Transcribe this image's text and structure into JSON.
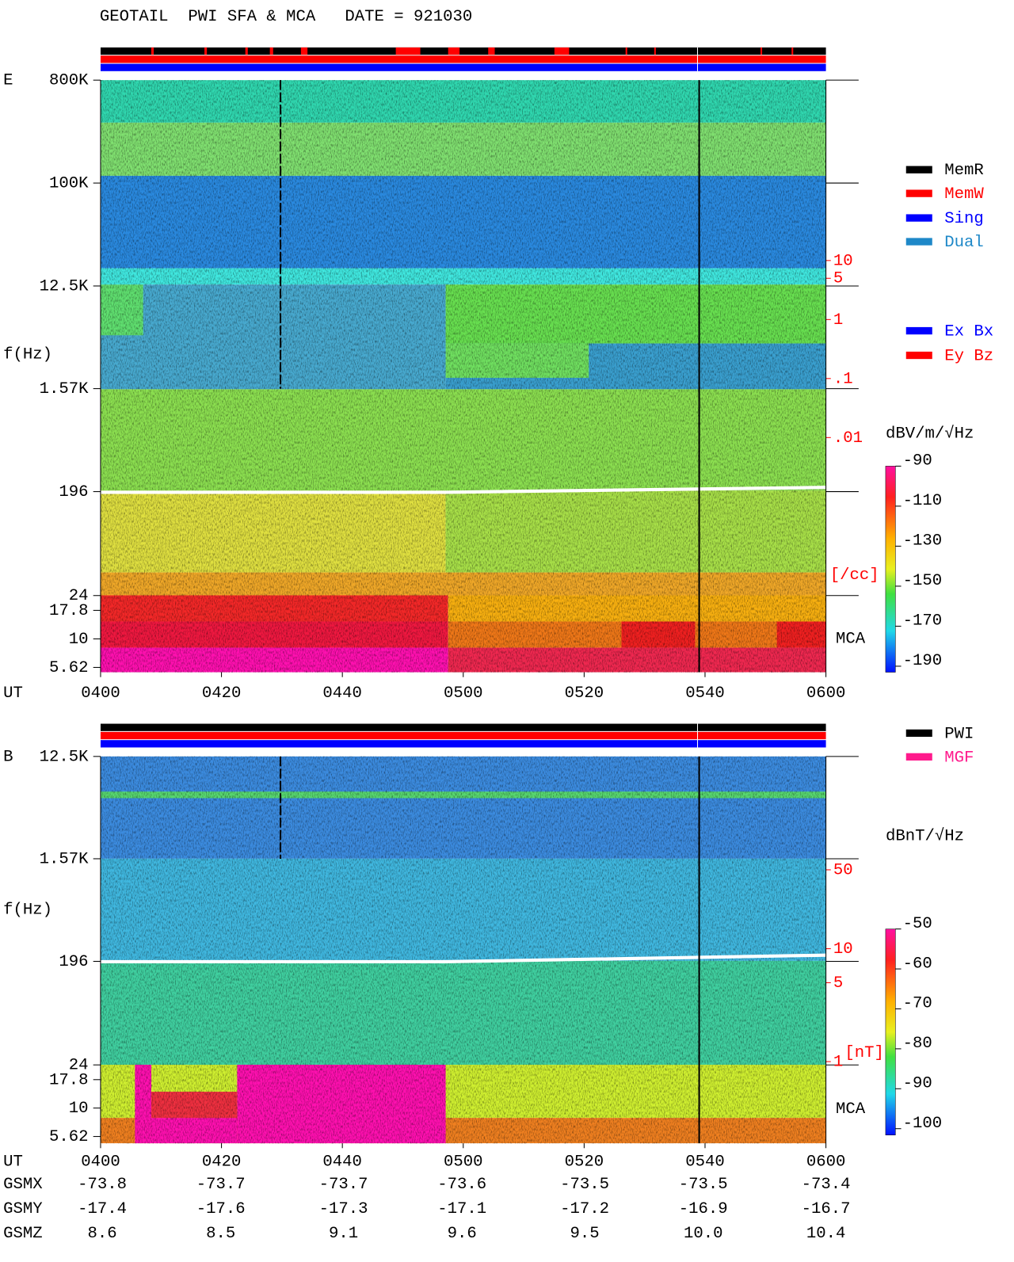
{
  "title": "GEOTAIL  PWI SFA & MCA   DATE = 921030",
  "chart_data": [
    {
      "type": "spectrogram",
      "panel_label": "E",
      "ylabel": "f(Hz)",
      "xlabel": "UT",
      "xlim": [
        240,
        360
      ],
      "xticks": [
        {
          "value": 240,
          "label": "0400"
        },
        {
          "value": 260,
          "label": "0420"
        },
        {
          "value": 280,
          "label": "0440"
        },
        {
          "value": 300,
          "label": "0500"
        },
        {
          "value": 320,
          "label": "0520"
        },
        {
          "value": 340,
          "label": "0540"
        },
        {
          "value": 360,
          "label": "0600"
        }
      ],
      "log_y": true,
      "ylim": [
        5.1,
        800000
      ],
      "yticks": [
        {
          "value": 800000,
          "label": "800K"
        },
        {
          "value": 100000,
          "label": "100K"
        },
        {
          "value": 12500,
          "label": "12.5K"
        },
        {
          "value": 1570,
          "label": "1.57K"
        },
        196,
        24,
        17.8,
        10,
        5.62
      ],
      "y2lim": [
        2.1e-05,
        11400
      ],
      "y2ticks": [
        10,
        5,
        1,
        {
          "value": 0.1,
          "label": ".1"
        },
        {
          "value": 0.01,
          "label": ".01"
        }
      ],
      "y2label": "[/cc]",
      "mca_label": "MCA",
      "colorbar": {
        "label": "dBV/m/√Hz",
        "lim": [
          -193,
          -90
        ],
        "ticks": [
          -90,
          -110,
          -130,
          -150,
          -170,
          -190
        ]
      },
      "legend": [
        {
          "name": "MemR",
          "color": "#000000"
        },
        {
          "name": "MemW",
          "color": "#ff0000"
        },
        {
          "name": "Sing",
          "color": "#0000ff"
        },
        {
          "name": "Dual",
          "color": "#1e88c8"
        }
      ],
      "legend2": [
        {
          "name": "Ex Bx",
          "color": "#0000ff"
        },
        {
          "name": "Ey Bz",
          "color": "#ff0000"
        }
      ]
    },
    {
      "type": "spectrogram",
      "panel_label": "B",
      "ylabel": "f(Hz)",
      "xlabel": "UT",
      "xlim": [
        240,
        360
      ],
      "xticks": [
        {
          "value": 240,
          "label": "0400"
        },
        {
          "value": 260,
          "label": "0420"
        },
        {
          "value": 280,
          "label": "0440"
        },
        {
          "value": 300,
          "label": "0500"
        },
        {
          "value": 320,
          "label": "0520"
        },
        {
          "value": 340,
          "label": "0540"
        },
        {
          "value": 360,
          "label": "0600"
        }
      ],
      "log_y": true,
      "ylim": [
        4.9,
        12500
      ],
      "yticks": [
        {
          "value": 12500,
          "label": "12.5K"
        },
        {
          "value": 1570,
          "label": "1.57K"
        },
        196,
        24,
        17.8,
        10,
        5.62
      ],
      "y2lim": [
        0.935,
        505
      ],
      "y2ticks": [
        50,
        10,
        5,
        1
      ],
      "y2label": "[nT]",
      "mca_label": "MCA",
      "colorbar": {
        "label": "dBnT/√Hz",
        "lim": [
          -101.6,
          -50
        ],
        "ticks": [
          -50,
          -60,
          -70,
          -80,
          -90,
          -100
        ]
      },
      "legend": [
        {
          "name": "PWI",
          "color": "#000000"
        },
        {
          "name": "MGF",
          "color": "#ff1a8c"
        }
      ]
    }
  ],
  "ephemeris": {
    "rows": [
      {
        "label": "GSMX",
        "values": [
          "-73.8",
          "-73.7",
          "-73.7",
          "-73.6",
          "-73.5",
          "-73.5",
          "-73.4"
        ]
      },
      {
        "label": "GSMY",
        "values": [
          "-17.4",
          "-17.6",
          "-17.3",
          "-17.1",
          "-17.2",
          "-16.9",
          "-16.7"
        ]
      },
      {
        "label": "GSMZ",
        "values": [
          "8.6",
          "8.5",
          "9.1",
          "9.6",
          "9.5",
          "10.0",
          "10.4"
        ]
      }
    ]
  }
}
